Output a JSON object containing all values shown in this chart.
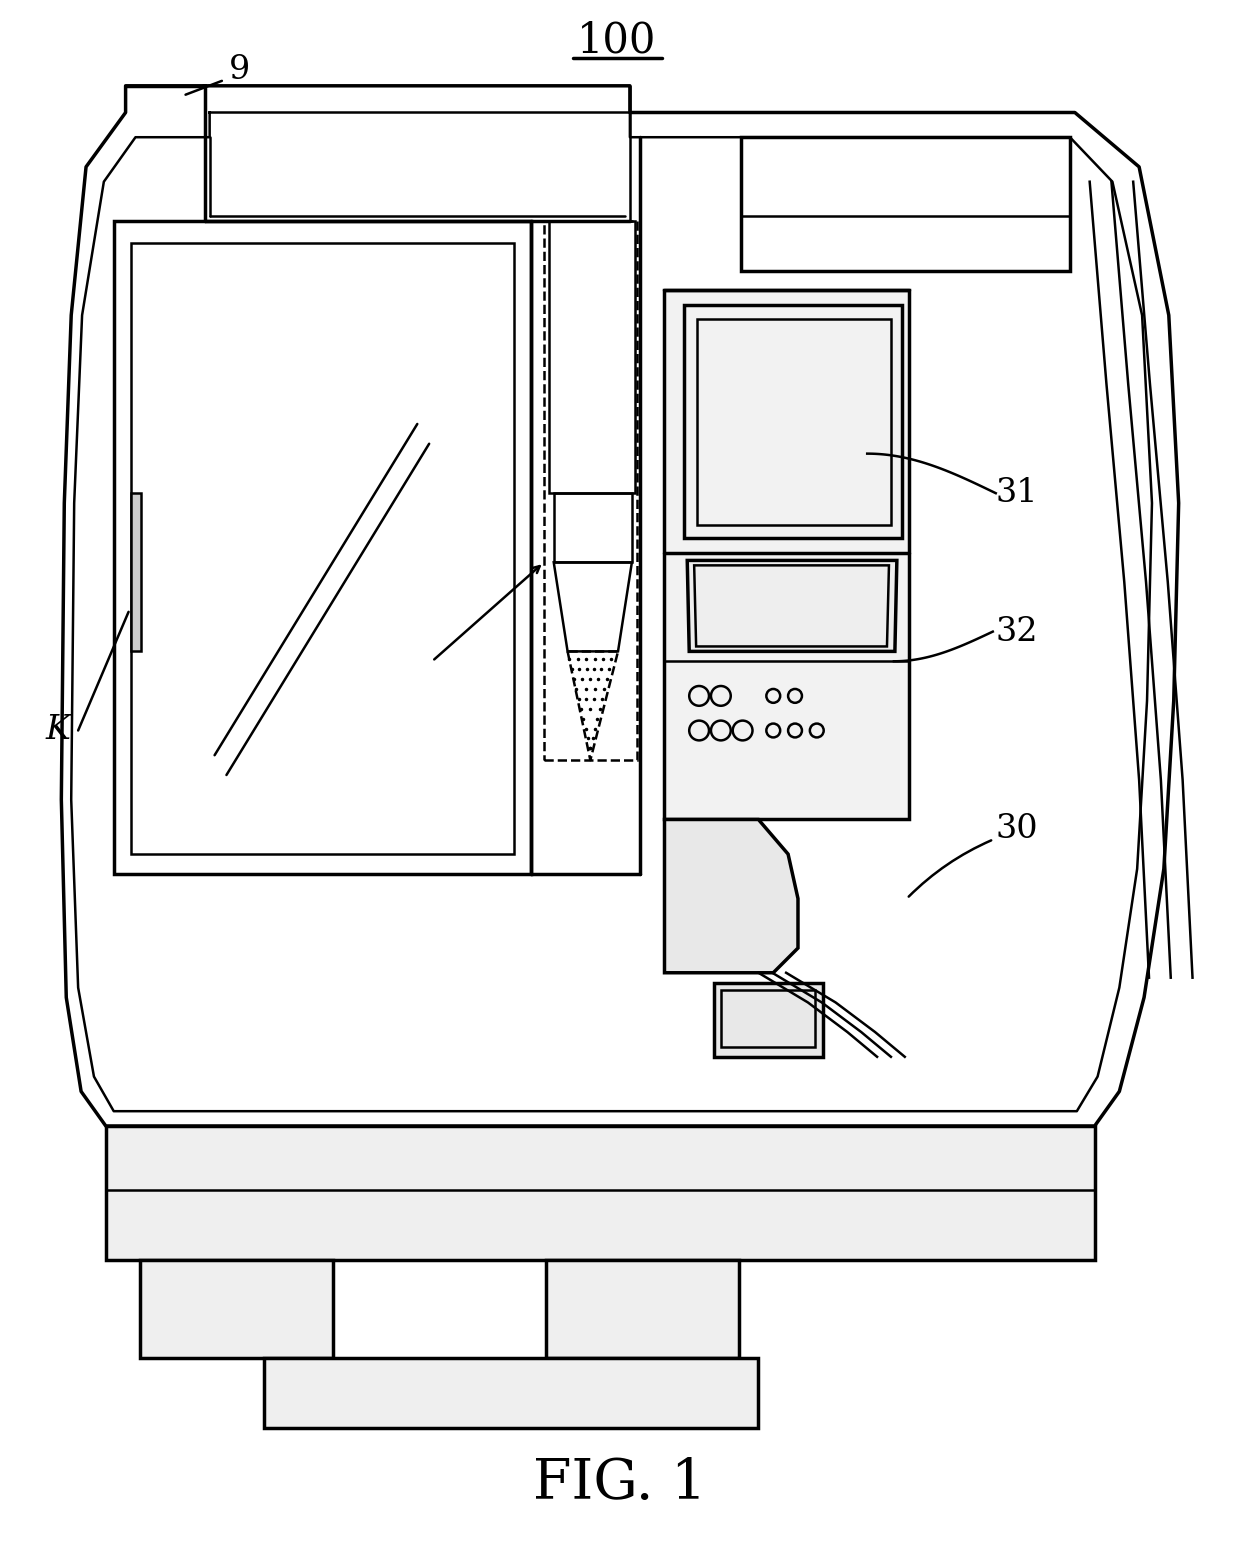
{
  "bg_color": "#ffffff",
  "line_color": "#000000",
  "lw": 1.8,
  "lw2": 2.5,
  "fig_label": "FIG. 1",
  "title_label": "100",
  "label_9": "9",
  "label_K": "K",
  "label_30": "30",
  "label_31": "31",
  "label_32": "32"
}
